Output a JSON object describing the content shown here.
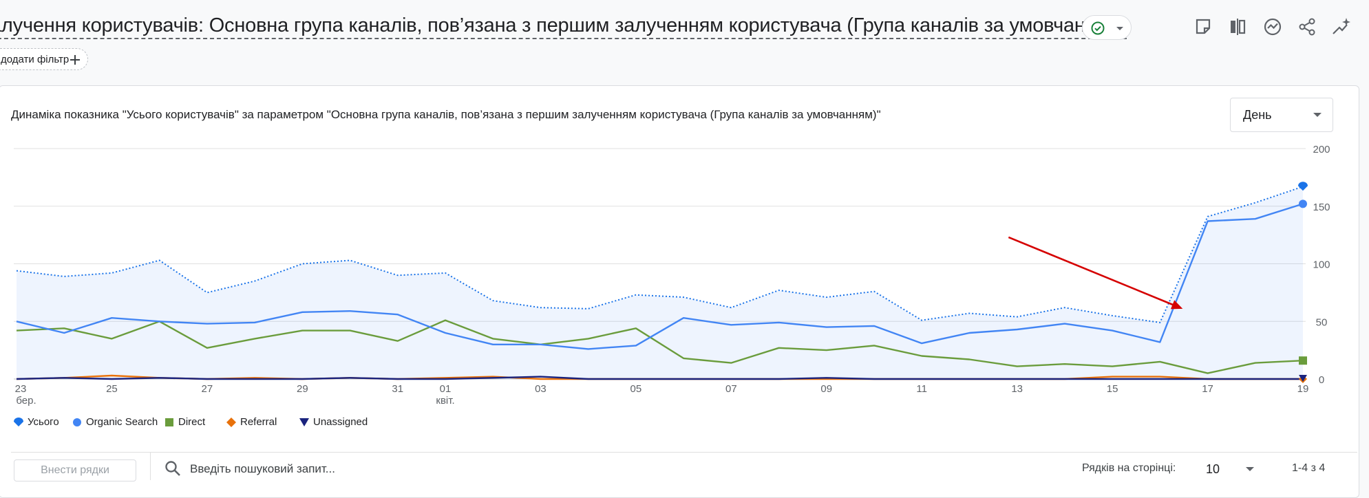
{
  "header": {
    "title": "алучення користувачів: Основна група каналів, пов’язана з першим залученням користувача (Група каналів за умовчанням)",
    "add_filter_label": "додати фільтр",
    "icons": [
      "customize-report-icon",
      "compare-icon",
      "insights-icon",
      "share-icon",
      "sparkle-icon"
    ]
  },
  "chart_card": {
    "title": "Динаміка показника \"Усього користувачів\" за параметром \"Основна група каналів, пов’язана з першим залученням користувача (Група каналів за умовчанням)\"",
    "period": "День"
  },
  "chart_data": {
    "type": "line",
    "x_tick_labels": [
      "23",
      "25",
      "27",
      "29",
      "31",
      "01",
      "03",
      "05",
      "07",
      "09",
      "11",
      "13",
      "15",
      "17",
      "19"
    ],
    "x_month_labels": [
      {
        "tick": "23",
        "label": "бер."
      },
      {
        "tick": "01",
        "label": "квіт."
      }
    ],
    "x": [
      "23 бер.",
      "24 бер.",
      "25 бер.",
      "26 бер.",
      "27 бер.",
      "28 бер.",
      "29 бер.",
      "30 бер.",
      "31 бер.",
      "01 квіт.",
      "02 квіт.",
      "03 квіт.",
      "04 квіт.",
      "05 квіт.",
      "06 квіт.",
      "07 квіт.",
      "08 квіт.",
      "09 квіт.",
      "10 квіт.",
      "11 квіт.",
      "12 квіт.",
      "13 квіт.",
      "14 квіт.",
      "15 квіт.",
      "16 квіт.",
      "17 квіт.",
      "18 квіт.",
      "19 квіт."
    ],
    "ylim": [
      0,
      200
    ],
    "y_ticks": [
      0,
      50,
      100,
      150,
      200
    ],
    "y_axis_side": "right",
    "grid": true,
    "legend_position": "bottom-left",
    "series": [
      {
        "name": "Усього",
        "color": "#1a73e8",
        "style": "dotted-area",
        "values": [
          94,
          89,
          92,
          103,
          75,
          85,
          100,
          103,
          90,
          92,
          68,
          62,
          61,
          73,
          71,
          62,
          77,
          71,
          76,
          51,
          57,
          54,
          62,
          55,
          49,
          141,
          153,
          167
        ]
      },
      {
        "name": "Organic Search",
        "color": "#4285f4",
        "style": "solid",
        "values": [
          50,
          40,
          53,
          50,
          48,
          49,
          58,
          59,
          56,
          40,
          30,
          30,
          26,
          29,
          53,
          47,
          49,
          45,
          46,
          31,
          40,
          43,
          48,
          42,
          32,
          137,
          139,
          152
        ]
      },
      {
        "name": "Direct",
        "color": "#6a9c3c",
        "style": "solid",
        "values": [
          42,
          44,
          35,
          50,
          27,
          35,
          42,
          42,
          33,
          51,
          35,
          30,
          35,
          44,
          18,
          14,
          27,
          25,
          29,
          20,
          17,
          11,
          13,
          11,
          15,
          5,
          14,
          16
        ]
      },
      {
        "name": "Referral",
        "color": "#e8710a",
        "style": "solid",
        "values": [
          0,
          1,
          3,
          1,
          0,
          1,
          0,
          1,
          0,
          1,
          2,
          0,
          0,
          0,
          0,
          0,
          0,
          0,
          0,
          0,
          0,
          0,
          0,
          2,
          2,
          0,
          0,
          0
        ]
      },
      {
        "name": "Unassigned",
        "color": "#1a237e",
        "style": "solid",
        "values": [
          0,
          1,
          0,
          1,
          0,
          0,
          0,
          1,
          0,
          0,
          1,
          2,
          0,
          0,
          0,
          0,
          0,
          1,
          0,
          0,
          0,
          0,
          0,
          0,
          0,
          0,
          0,
          0
        ]
      }
    ],
    "annotation": {
      "type": "arrow",
      "color": "#d50000",
      "points_to": "16 квіт."
    }
  },
  "legend": [
    {
      "label": "Усього",
      "symbol": "pin",
      "color": "#1a73e8"
    },
    {
      "label": "Organic Search",
      "symbol": "circle",
      "color": "#4285f4"
    },
    {
      "label": "Direct",
      "symbol": "square",
      "color": "#6a9c3c"
    },
    {
      "label": "Referral",
      "symbol": "diamond",
      "color": "#e8710a"
    },
    {
      "label": "Unassigned",
      "symbol": "triangle-down",
      "color": "#1a237e"
    }
  ],
  "table_toolbar": {
    "add_rows_label": "Внести рядки",
    "search_placeholder": "Введіть пошуковий запит...",
    "rows_per_page_label": "Рядків на сторінці:",
    "rows_per_page_value": "10",
    "range_text": "1-4 з 4"
  }
}
